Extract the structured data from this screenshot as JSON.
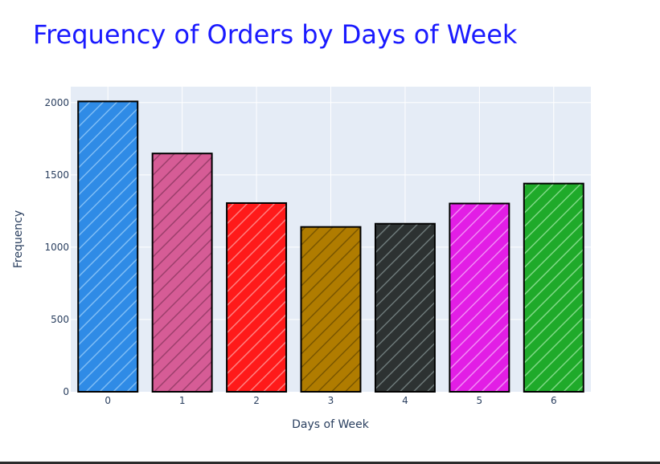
{
  "chart_data": {
    "type": "bar",
    "title": "Frequency of Orders by Days of Week",
    "xlabel": "Days of Week",
    "ylabel": "Frequency",
    "categories": [
      "0",
      "1",
      "2",
      "3",
      "4",
      "5",
      "6"
    ],
    "values": [
      2008,
      1648,
      1305,
      1140,
      1162,
      1302,
      1440
    ],
    "ylim": [
      0,
      2110
    ],
    "yticks": [
      0,
      500,
      1000,
      1500,
      2000
    ],
    "grid": true,
    "legend": "none",
    "pattern": "diagonal-stripes",
    "colors": [
      "#2f8be6",
      "#d65c96",
      "#ff1a1a",
      "#b07c00",
      "#2d3232",
      "#e21ee5",
      "#1faa2a"
    ],
    "stripe_colors": [
      "#7fbdf5",
      "#9c3f6c",
      "#ff8080",
      "#7a5600",
      "#6c7878",
      "#f28af5",
      "#7fd986"
    ],
    "plot_bg": "#e5ecf6",
    "title_color": "#1a1aff",
    "axis_text_color": "#2a3f5f"
  }
}
